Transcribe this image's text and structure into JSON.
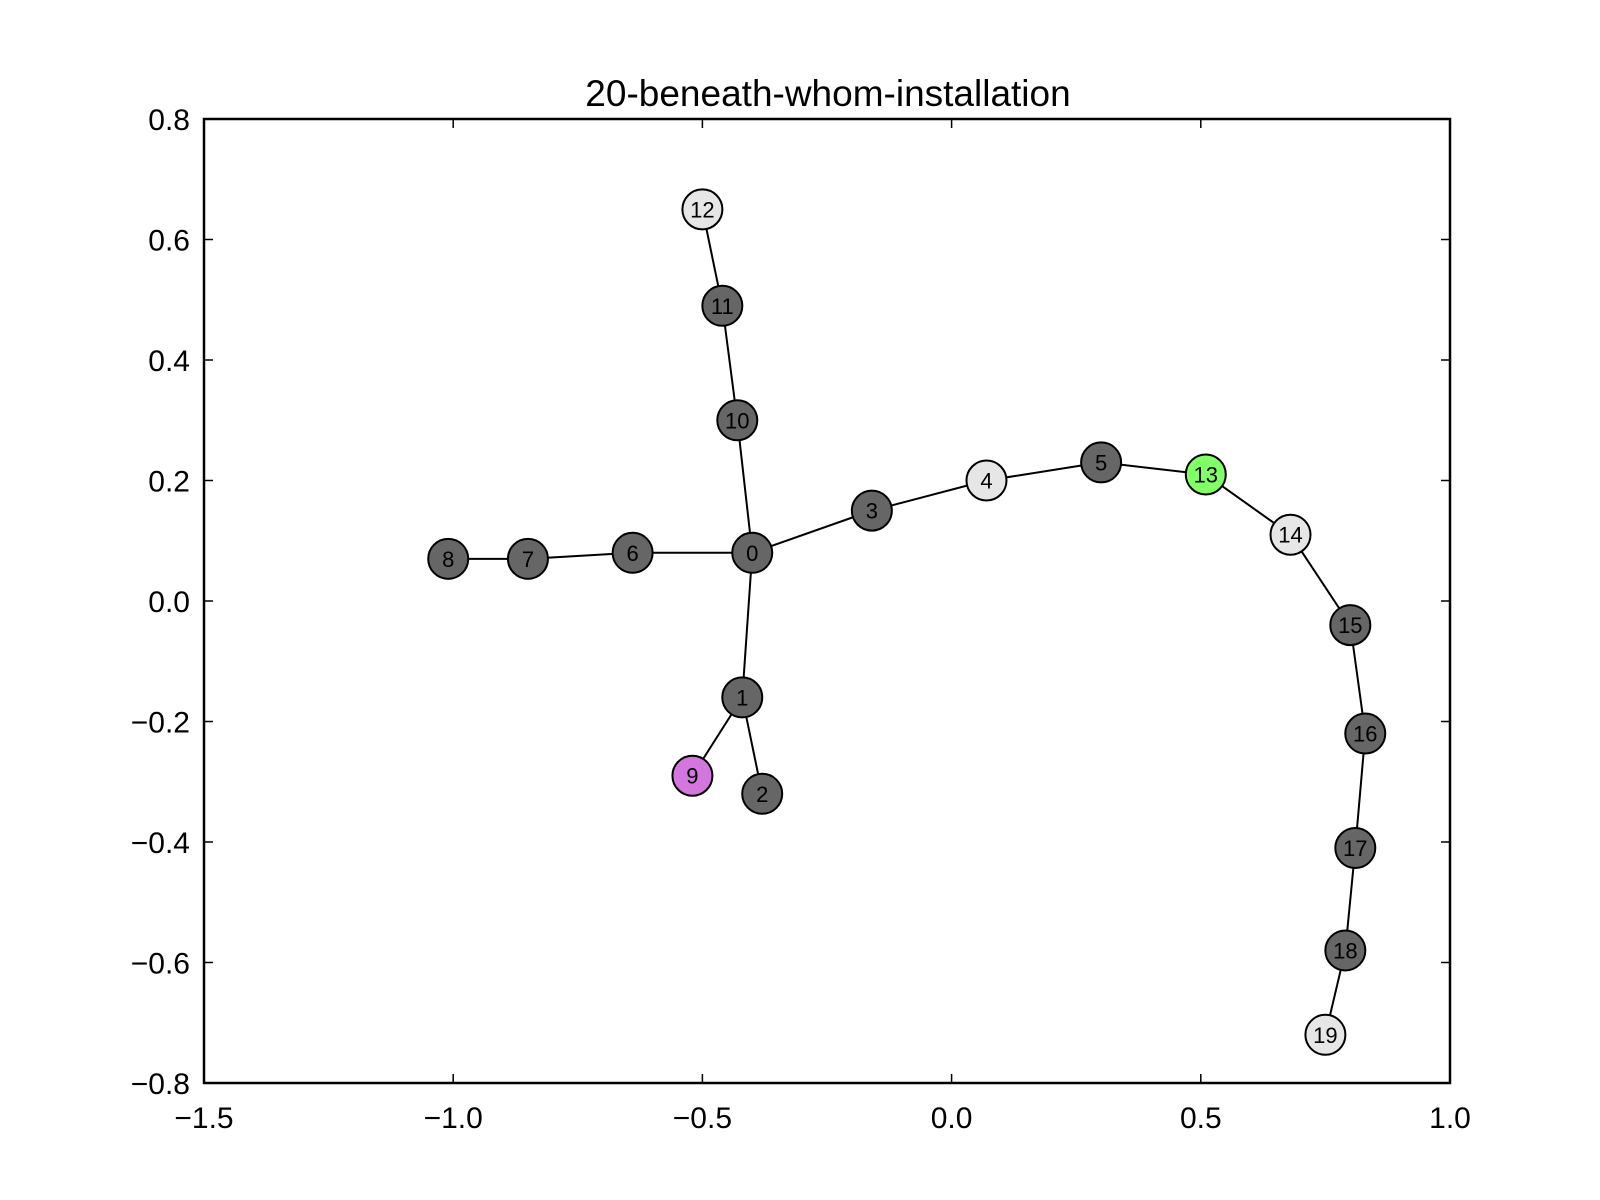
{
  "chart_data": {
    "type": "graph",
    "title": "20-beneath-whom-installation",
    "xlim": [
      -1.5,
      1.0
    ],
    "ylim": [
      -0.8,
      0.8
    ],
    "x_ticks": [
      {
        "value": -1.5,
        "label": "−1.5"
      },
      {
        "value": -1.0,
        "label": "−1.0"
      },
      {
        "value": -0.5,
        "label": "−0.5"
      },
      {
        "value": 0.0,
        "label": "0.0"
      },
      {
        "value": 0.5,
        "label": "0.5"
      },
      {
        "value": 1.0,
        "label": "1.0"
      }
    ],
    "y_ticks": [
      {
        "value": 0.8,
        "label": "0.8"
      },
      {
        "value": 0.6,
        "label": "0.6"
      },
      {
        "value": 0.4,
        "label": "0.4"
      },
      {
        "value": 0.2,
        "label": "0.2"
      },
      {
        "value": 0.0,
        "label": "0.0"
      },
      {
        "value": -0.2,
        "label": "−0.2"
      },
      {
        "value": -0.4,
        "label": "−0.4"
      },
      {
        "value": -0.6,
        "label": "−0.6"
      },
      {
        "value": -0.8,
        "label": "−0.8"
      }
    ],
    "grid": false,
    "colors": {
      "dark": "#666666",
      "light": "#e6e6e6",
      "green": "#80ff66",
      "violet": "#d376de"
    },
    "nodes": [
      {
        "id": "0",
        "x": -0.4,
        "y": 0.08,
        "color": "dark"
      },
      {
        "id": "1",
        "x": -0.42,
        "y": -0.16,
        "color": "dark"
      },
      {
        "id": "2",
        "x": -0.38,
        "y": -0.32,
        "color": "dark"
      },
      {
        "id": "3",
        "x": -0.16,
        "y": 0.15,
        "color": "dark"
      },
      {
        "id": "4",
        "x": 0.07,
        "y": 0.2,
        "color": "light"
      },
      {
        "id": "5",
        "x": 0.3,
        "y": 0.23,
        "color": "dark"
      },
      {
        "id": "6",
        "x": -0.64,
        "y": 0.08,
        "color": "dark"
      },
      {
        "id": "7",
        "x": -0.85,
        "y": 0.07,
        "color": "dark"
      },
      {
        "id": "8",
        "x": -1.01,
        "y": 0.07,
        "color": "dark"
      },
      {
        "id": "9",
        "x": -0.52,
        "y": -0.29,
        "color": "violet"
      },
      {
        "id": "10",
        "x": -0.43,
        "y": 0.3,
        "color": "dark"
      },
      {
        "id": "11",
        "x": -0.46,
        "y": 0.49,
        "color": "dark"
      },
      {
        "id": "12",
        "x": -0.5,
        "y": 0.65,
        "color": "light"
      },
      {
        "id": "13",
        "x": 0.51,
        "y": 0.21,
        "color": "green"
      },
      {
        "id": "14",
        "x": 0.68,
        "y": 0.11,
        "color": "light"
      },
      {
        "id": "15",
        "x": 0.8,
        "y": -0.04,
        "color": "dark"
      },
      {
        "id": "16",
        "x": 0.83,
        "y": -0.22,
        "color": "dark"
      },
      {
        "id": "17",
        "x": 0.81,
        "y": -0.41,
        "color": "dark"
      },
      {
        "id": "18",
        "x": 0.79,
        "y": -0.58,
        "color": "dark"
      },
      {
        "id": "19",
        "x": 0.75,
        "y": -0.72,
        "color": "light"
      }
    ],
    "edges": [
      [
        "0",
        "1"
      ],
      [
        "1",
        "2"
      ],
      [
        "1",
        "9"
      ],
      [
        "0",
        "3"
      ],
      [
        "3",
        "4"
      ],
      [
        "4",
        "5"
      ],
      [
        "5",
        "13"
      ],
      [
        "13",
        "14"
      ],
      [
        "14",
        "15"
      ],
      [
        "15",
        "16"
      ],
      [
        "16",
        "17"
      ],
      [
        "17",
        "18"
      ],
      [
        "18",
        "19"
      ],
      [
        "0",
        "6"
      ],
      [
        "6",
        "7"
      ],
      [
        "7",
        "8"
      ],
      [
        "0",
        "10"
      ],
      [
        "10",
        "11"
      ],
      [
        "11",
        "12"
      ]
    ]
  }
}
